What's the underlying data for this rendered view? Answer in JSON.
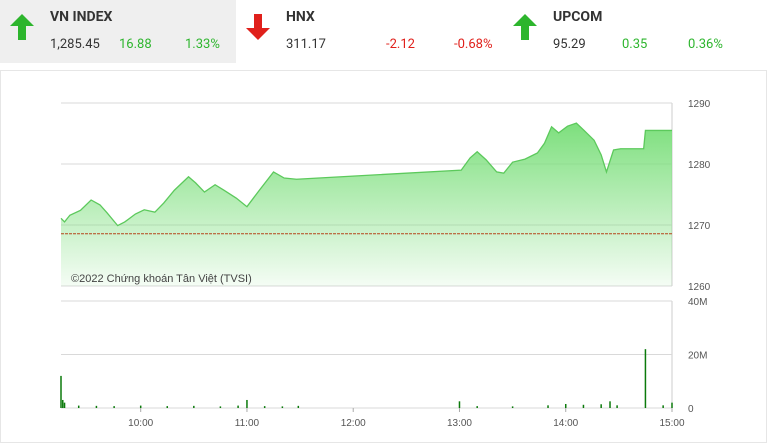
{
  "header": {
    "indices": [
      {
        "name": "VN INDEX",
        "direction": "up",
        "price": "1,285.45",
        "change": "16.88",
        "percent": "1.33%"
      },
      {
        "name": "HNX",
        "direction": "down",
        "price": "311.17",
        "change": "-2.12",
        "percent": "-0.68%"
      },
      {
        "name": "UPCOM",
        "direction": "up",
        "price": "95.29",
        "change": "0.35",
        "percent": "0.36%"
      }
    ]
  },
  "chart_data": [
    {
      "type": "area",
      "annotation": "©2022 Chứng khoán Tân Việt (TVSI)",
      "color": "#5cc95c",
      "reference": 1268.57,
      "reference_color": "#b5451b",
      "x": [
        "09:15",
        "09:17",
        "09:20",
        "09:26",
        "09:32",
        "09:37",
        "09:41",
        "09:47",
        "09:51",
        "09:57",
        "10:02",
        "10:08",
        "10:13",
        "10:19",
        "10:27",
        "10:31",
        "10:36",
        "10:42",
        "10:47",
        "10:54",
        "11:00",
        "11:07",
        "11:15",
        "11:21",
        "11:28",
        "13:01",
        "13:06",
        "13:10",
        "13:15",
        "13:21",
        "13:25",
        "13:30",
        "13:37",
        "13:44",
        "13:48",
        "13:52",
        "13:56",
        "14:01",
        "14:06",
        "14:10",
        "14:16",
        "14:20",
        "14:23",
        "14:27",
        "14:31",
        "14:44",
        "14:45",
        "15:00"
      ],
      "values": [
        1271.1,
        1270.5,
        1271.6,
        1272.4,
        1274.1,
        1273.3,
        1272,
        1269.9,
        1270.5,
        1271.8,
        1272.5,
        1272.1,
        1273.6,
        1275.7,
        1277.9,
        1276.9,
        1275.4,
        1276.6,
        1275.7,
        1274.4,
        1273,
        1275.7,
        1278.7,
        1277.7,
        1277.5,
        1279,
        1281,
        1282,
        1280.7,
        1278.7,
        1278.5,
        1280.3,
        1280.8,
        1281.8,
        1283.4,
        1286.1,
        1285.1,
        1286.2,
        1286.7,
        1285.6,
        1283.9,
        1281.5,
        1278.7,
        1282.3,
        1282.5,
        1282.5,
        1285.5,
        1285.5
      ],
      "xlim": [
        "09:15",
        "15:00"
      ],
      "ylim": [
        1260,
        1290
      ],
      "yticks": [
        1260,
        1270,
        1280,
        1290
      ],
      "grid": true
    },
    {
      "type": "bar",
      "color": "#0b7a0b",
      "x": [
        "09:15",
        "09:16",
        "09:17",
        "09:25",
        "09:35",
        "09:45",
        "10:00",
        "10:15",
        "10:30",
        "10:45",
        "10:55",
        "11:00",
        "11:10",
        "11:20",
        "11:29",
        "13:00",
        "13:10",
        "13:30",
        "13:50",
        "14:00",
        "14:10",
        "14:20",
        "14:25",
        "14:29",
        "14:45",
        "14:55",
        "15:00"
      ],
      "values": [
        12000000,
        3000000,
        2000000,
        900000,
        800000,
        700000,
        900000,
        700000,
        800000,
        600000,
        900000,
        3000000,
        700000,
        600000,
        800000,
        2500000,
        700000,
        600000,
        1000000,
        1500000,
        1200000,
        1400000,
        2500000,
        1000000,
        22000000,
        1000000,
        2000000
      ],
      "xlim": [
        "09:15",
        "15:00"
      ],
      "xticks": [
        "10:00",
        "11:00",
        "12:00",
        "13:00",
        "14:00",
        "15:00"
      ],
      "ylim": [
        0,
        40000000
      ],
      "yticks": [
        0,
        {
          "value": 20000000,
          "label": "20M"
        },
        {
          "value": 40000000,
          "label": "40M"
        }
      ],
      "grid": true
    }
  ]
}
